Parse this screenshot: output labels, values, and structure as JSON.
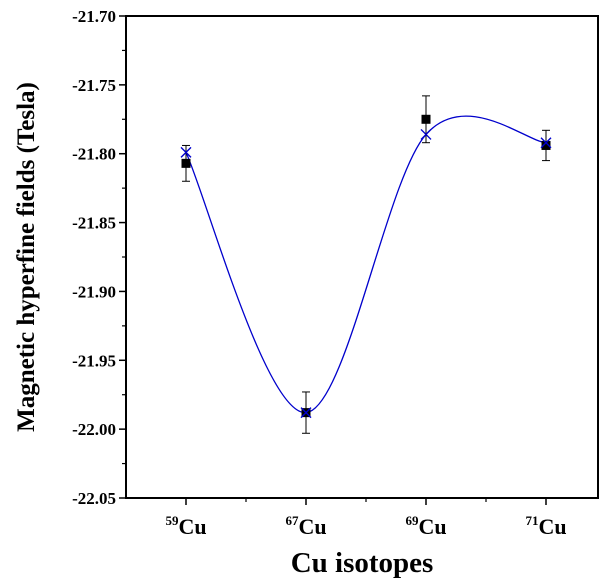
{
  "chart_data": {
    "type": "scatter",
    "title": "",
    "xlabel": "Cu isotopes",
    "ylabel": "Magnetic hyperfine fields (Tesla)",
    "categories": [
      {
        "sup": "59",
        "base": "Cu"
      },
      {
        "sup": "67",
        "base": "Cu"
      },
      {
        "sup": "69",
        "base": "Cu"
      },
      {
        "sup": "71",
        "base": "Cu"
      }
    ],
    "ylim": [
      -22.05,
      -21.7
    ],
    "yticks": [
      "-21.70",
      "-21.75",
      "-21.80",
      "-21.85",
      "-21.90",
      "-21.95",
      "-22.00",
      "-22.05"
    ],
    "ytick_values": [
      -21.7,
      -21.75,
      -21.8,
      -21.85,
      -21.9,
      -21.95,
      -22.0,
      -22.05
    ],
    "series": [
      {
        "marker": "square",
        "color": "#000000",
        "values": [
          -21.807,
          -21.988,
          -21.775,
          -21.794
        ],
        "errors": [
          0.013,
          0.015,
          0.017,
          0.011
        ]
      },
      {
        "marker": "x",
        "color": "#0000cc",
        "line": "smooth",
        "values": [
          -21.799,
          -21.988,
          -21.786,
          -21.792
        ]
      }
    ],
    "grid": false,
    "legend": "none"
  }
}
